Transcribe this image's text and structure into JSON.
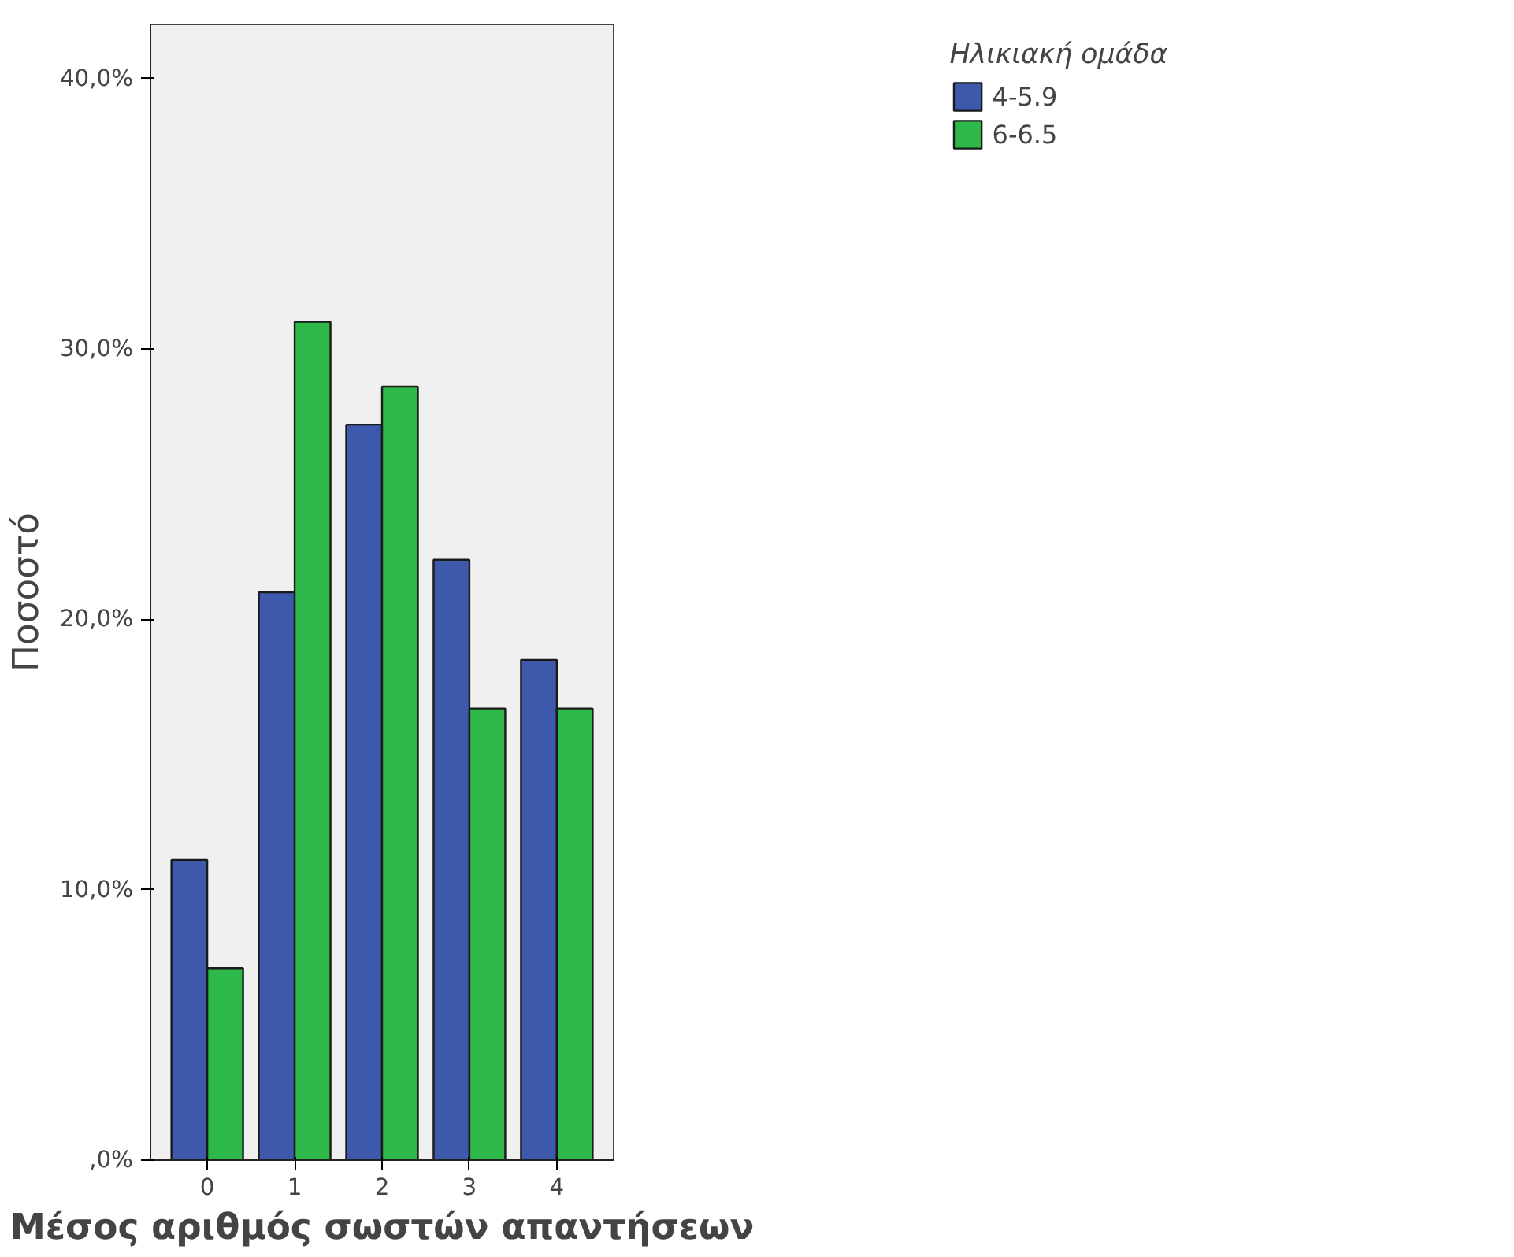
{
  "chart_data": {
    "type": "bar",
    "xlabel": "Μέσος αριθμός σωστών απαντήσεων",
    "ylabel": "Ποσοστό",
    "legend_title": "Ηλικιακή ομάδα",
    "categories": [
      "0",
      "1",
      "2",
      "3",
      "4"
    ],
    "series": [
      {
        "name": "4-5.9",
        "color": "#3e58ac",
        "values": [
          11.1,
          21.0,
          27.2,
          22.2,
          18.5
        ]
      },
      {
        "name": "6-6.5",
        "color": "#2eb84a",
        "values": [
          7.1,
          31.0,
          28.6,
          16.7,
          16.7
        ]
      }
    ],
    "ylim": [
      0,
      42
    ],
    "yticks": [
      {
        "value": 0,
        "label": ",0%"
      },
      {
        "value": 10,
        "label": "10,0%"
      },
      {
        "value": 20,
        "label": "20,0%"
      },
      {
        "value": 30,
        "label": "30,0%"
      },
      {
        "value": 40,
        "label": "40,0%"
      }
    ],
    "grid": false,
    "legend": "top right"
  }
}
